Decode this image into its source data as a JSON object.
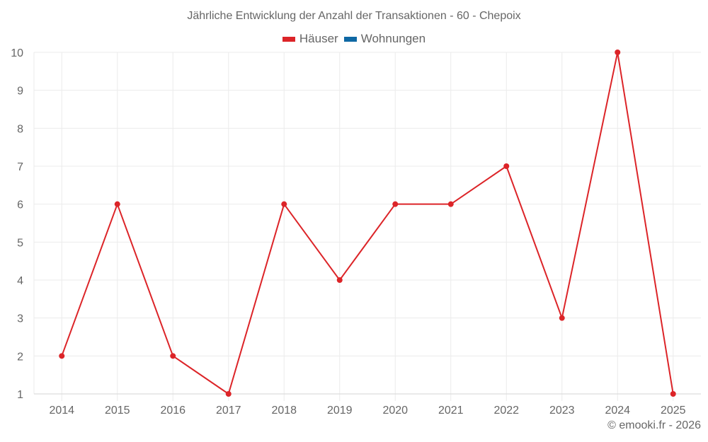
{
  "title": "Jährliche Entwicklung der Anzahl der Transaktionen - 60 - Chepoix",
  "legend": [
    {
      "label": "Häuser",
      "color": "#dc2428",
      "icon": "legend-swatch-red"
    },
    {
      "label": "Wohnungen",
      "color": "#0f68a4",
      "icon": "legend-swatch-blue"
    }
  ],
  "credits": "© emooki.fr - 2026",
  "colors": {
    "grid": "#ebebeb",
    "axis": "#d6d6d6",
    "text": "#666666",
    "series_hauser": "#dc2428"
  },
  "chart_data": {
    "type": "line",
    "title": "Jährliche Entwicklung der Anzahl der Transaktionen - 60 - Chepoix",
    "xlabel": "",
    "ylabel": "",
    "categories": [
      "2014",
      "2015",
      "2016",
      "2017",
      "2018",
      "2019",
      "2020",
      "2021",
      "2022",
      "2023",
      "2024",
      "2025"
    ],
    "series": [
      {
        "name": "Häuser",
        "color": "#dc2428",
        "values": [
          2,
          6,
          2,
          1,
          6,
          4,
          6,
          6,
          7,
          3,
          10,
          1
        ]
      },
      {
        "name": "Wohnungen",
        "color": "#0f68a4",
        "values": []
      }
    ],
    "ylim": [
      1,
      10
    ],
    "yticks": [
      1,
      2,
      3,
      4,
      5,
      6,
      7,
      8,
      9,
      10
    ],
    "grid": true,
    "legend_position": "top-center"
  }
}
